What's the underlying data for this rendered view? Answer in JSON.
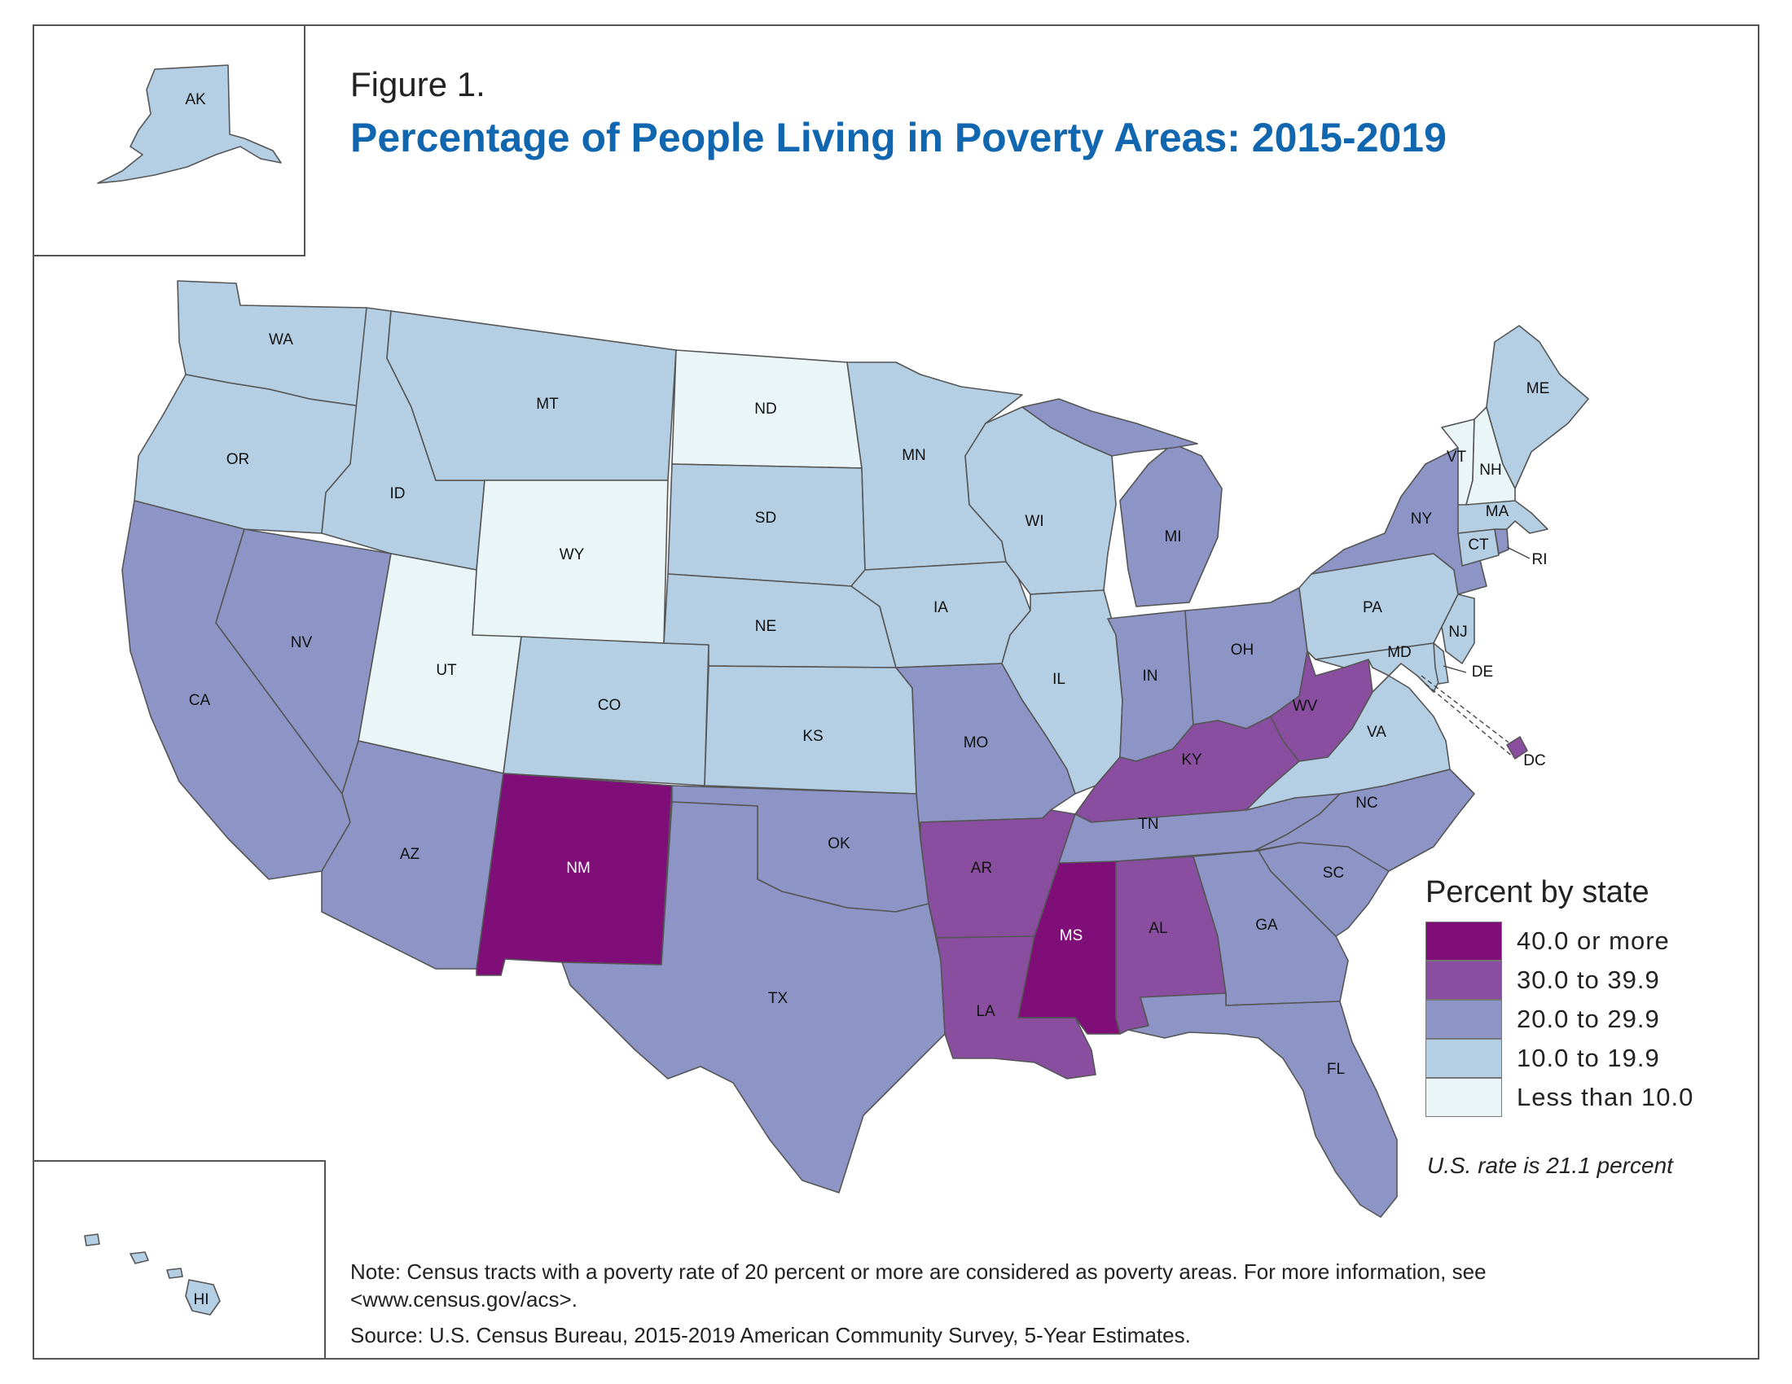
{
  "figure_label": "Figure 1.",
  "title": "Percentage of People Living in Poverty Areas: 2015-2019",
  "legend": {
    "title": "Percent by state",
    "classes": [
      {
        "label": "40.0 or more",
        "color": "#7f0e79"
      },
      {
        "label": "30.0 to  39.9",
        "color": "#8a4ea1"
      },
      {
        "label": "20.0 to  29.9",
        "color": "#8d95c6"
      },
      {
        "label": "10.0 to  19.9",
        "color": "#b4cfe3"
      },
      {
        "label": "Less than 10.0",
        "color": "#e9f5f6"
      }
    ]
  },
  "us_rate": "U.S. rate is 21.1 percent",
  "note": "Note: Census tracts with a poverty rate of 20 percent or more are considered as poverty areas. For more information, see <www.census.gov/acs>.",
  "source": "Source: U.S. Census Bureau, 2015-2019 American Community Survey, 5-Year Estimates.",
  "states": {
    "AK": {
      "label": "AK",
      "class": 3
    },
    "HI": {
      "label": "HI",
      "class": 3
    },
    "WA": {
      "label": "WA",
      "class": 3
    },
    "OR": {
      "label": "OR",
      "class": 3
    },
    "CA": {
      "label": "CA",
      "class": 2
    },
    "NV": {
      "label": "NV",
      "class": 2
    },
    "ID": {
      "label": "ID",
      "class": 3
    },
    "MT": {
      "label": "MT",
      "class": 3
    },
    "WY": {
      "label": "WY",
      "class": 4
    },
    "UT": {
      "label": "UT",
      "class": 4
    },
    "CO": {
      "label": "CO",
      "class": 3
    },
    "AZ": {
      "label": "AZ",
      "class": 2
    },
    "NM": {
      "label": "NM",
      "class": 0
    },
    "ND": {
      "label": "ND",
      "class": 4
    },
    "SD": {
      "label": "SD",
      "class": 3
    },
    "NE": {
      "label": "NE",
      "class": 3
    },
    "KS": {
      "label": "KS",
      "class": 3
    },
    "OK": {
      "label": "OK",
      "class": 2
    },
    "TX": {
      "label": "TX",
      "class": 2
    },
    "MN": {
      "label": "MN",
      "class": 3
    },
    "IA": {
      "label": "IA",
      "class": 3
    },
    "MO": {
      "label": "MO",
      "class": 2
    },
    "AR": {
      "label": "AR",
      "class": 1
    },
    "LA": {
      "label": "LA",
      "class": 1
    },
    "WI": {
      "label": "WI",
      "class": 3
    },
    "IL": {
      "label": "IL",
      "class": 3
    },
    "MI": {
      "label": "MI",
      "class": 2
    },
    "IN": {
      "label": "IN",
      "class": 2
    },
    "OH": {
      "label": "OH",
      "class": 2
    },
    "KY": {
      "label": "KY",
      "class": 1
    },
    "TN": {
      "label": "TN",
      "class": 2
    },
    "MS": {
      "label": "MS",
      "class": 0
    },
    "AL": {
      "label": "AL",
      "class": 1
    },
    "GA": {
      "label": "GA",
      "class": 2
    },
    "FL": {
      "label": "FL",
      "class": 2
    },
    "SC": {
      "label": "SC",
      "class": 2
    },
    "NC": {
      "label": "NC",
      "class": 2
    },
    "VA": {
      "label": "VA",
      "class": 3
    },
    "WV": {
      "label": "WV",
      "class": 1
    },
    "PA": {
      "label": "PA",
      "class": 3
    },
    "NY": {
      "label": "NY",
      "class": 2
    },
    "NJ": {
      "label": "NJ",
      "class": 3
    },
    "DE": {
      "label": "DE",
      "class": 3
    },
    "MD": {
      "label": "MD",
      "class": 3
    },
    "DC": {
      "label": "DC",
      "class": 1
    },
    "CT": {
      "label": "CT",
      "class": 3
    },
    "RI": {
      "label": "RI",
      "class": 2
    },
    "MA": {
      "label": "MA",
      "class": 3
    },
    "VT": {
      "label": "VT",
      "class": 4
    },
    "NH": {
      "label": "NH",
      "class": 4
    },
    "ME": {
      "label": "ME",
      "class": 3
    }
  }
}
